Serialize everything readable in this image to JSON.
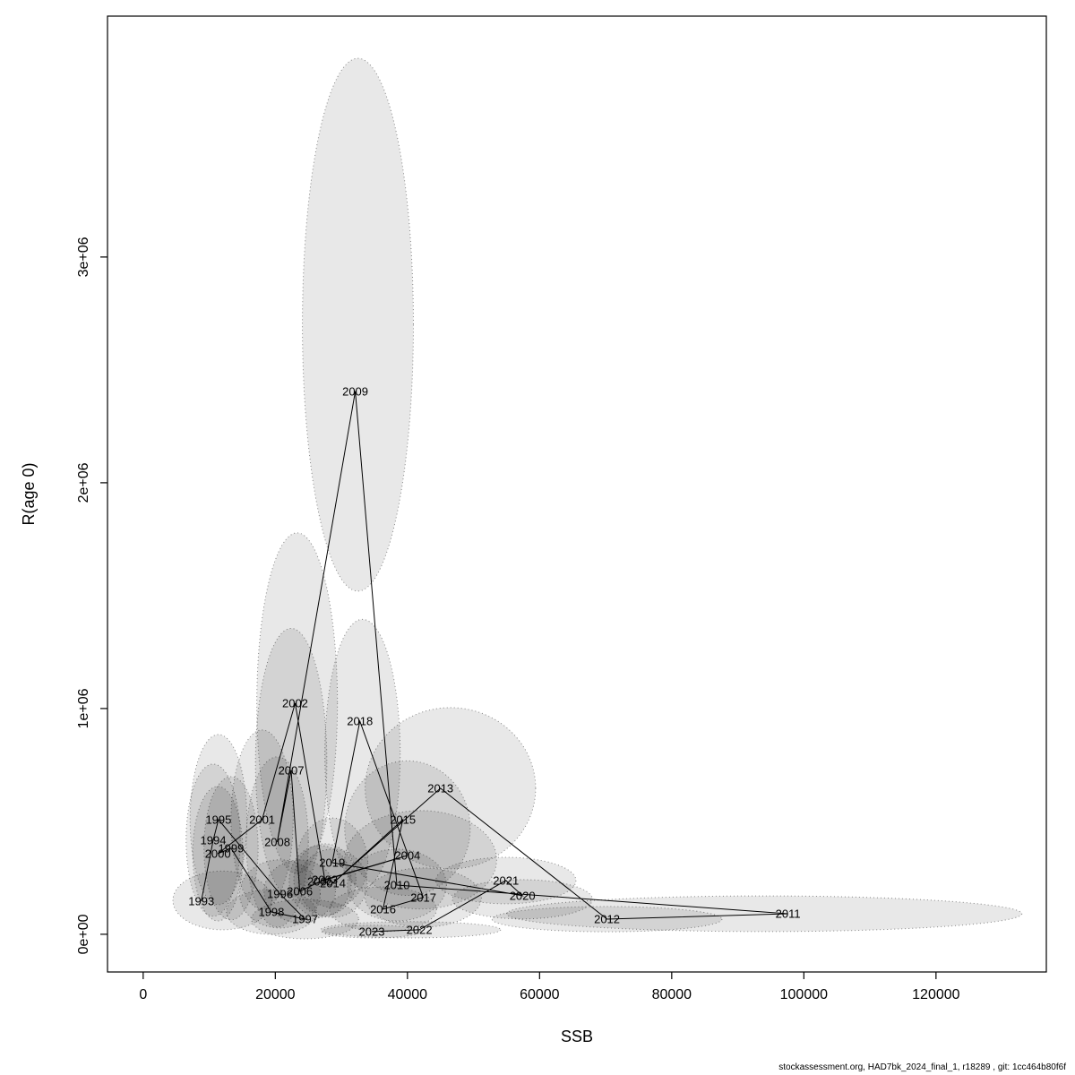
{
  "figure": {
    "background": "#FFFFFF",
    "label_color": "#FF0000",
    "line_color": "#000000",
    "ellipse_fill_alpha": 0.09,
    "ellipse_stroke": "rgba(0,0,0,0.45)"
  },
  "footer": {
    "caption": "stockassessment.org, HAD7bk_2024_final_1, r18289 , git: 1cc464b80f6f"
  },
  "chart_data": {
    "type": "scatter",
    "title": "",
    "xlabel": "SSB",
    "ylabel": "R(age 0)",
    "xlim": [
      -5400,
      136700
    ],
    "ylim": [
      -167000,
      4067000
    ],
    "grid": false,
    "legend": "none",
    "x_ticks": [
      0,
      20000,
      40000,
      60000,
      80000,
      100000,
      120000
    ],
    "x_tick_labels": [
      "0",
      "20000",
      "40000",
      "60000",
      "80000",
      "100000",
      "120000"
    ],
    "y_ticks": [
      0,
      1000000,
      2000000,
      3000000
    ],
    "y_tick_labels": [
      "0e+00",
      "1e+06",
      "2e+06",
      "3e+06"
    ],
    "connect_points_in_year_order": true,
    "points": [
      {
        "year": 1993,
        "ssb": 8800,
        "rec": 147000,
        "ell": {
          "cx": 12000,
          "cy": 150000,
          "rx": 7500,
          "ry": 130000
        }
      },
      {
        "year": 1994,
        "ssb": 10600,
        "rec": 417000,
        "ell": {
          "cx": 10600,
          "cy": 417000,
          "rx": 4100,
          "ry": 337000
        }
      },
      {
        "year": 1995,
        "ssb": 11400,
        "rec": 508000,
        "ell": {
          "cx": 11400,
          "cy": 508000,
          "rx": 4300,
          "ry": 377000
        }
      },
      {
        "year": 1996,
        "ssb": 20700,
        "rec": 179000,
        "ell": {
          "cx": 20700,
          "cy": 179000,
          "rx": 6100,
          "ry": 151000
        }
      },
      {
        "year": 1997,
        "ssb": 24500,
        "rec": 67000,
        "ell": {
          "cx": 24500,
          "cy": 67000,
          "rx": 8100,
          "ry": 87000
        }
      },
      {
        "year": 1998,
        "ssb": 19400,
        "rec": 99000,
        "ell": {
          "cx": 19400,
          "cy": 99000,
          "rx": 6800,
          "ry": 99000
        }
      },
      {
        "year": 1999,
        "ssb": 13300,
        "rec": 381000,
        "ell": {
          "cx": 13300,
          "cy": 381000,
          "rx": 4100,
          "ry": 317000
        }
      },
      {
        "year": 2000,
        "ssb": 11300,
        "rec": 357000,
        "ell": {
          "cx": 11300,
          "cy": 357000,
          "rx": 3800,
          "ry": 298000
        }
      },
      {
        "year": 2001,
        "ssb": 18000,
        "rec": 508000,
        "ell": {
          "cx": 18000,
          "cy": 508000,
          "rx": 4700,
          "ry": 397000
        }
      },
      {
        "year": 2002,
        "ssb": 23000,
        "rec": 1024000,
        "ell": {
          "cx": 23300,
          "cy": 1024000,
          "rx": 6100,
          "ry": 754000
        }
      },
      {
        "year": 2003,
        "ssb": 27500,
        "rec": 242000,
        "ell": {
          "cx": 27500,
          "cy": 242000,
          "rx": 4700,
          "ry": 159000
        }
      },
      {
        "year": 2004,
        "ssb": 40000,
        "rec": 349000,
        "ell": {
          "cx": 42000,
          "cy": 330000,
          "rx": 11500,
          "ry": 218000
        }
      },
      {
        "year": 2005,
        "ssb": 26800,
        "rec": 234000,
        "ell": {
          "cx": 26800,
          "cy": 234000,
          "rx": 4700,
          "ry": 159000
        }
      },
      {
        "year": 2006,
        "ssb": 23700,
        "rec": 190000,
        "ell": {
          "cx": 23700,
          "cy": 190000,
          "rx": 5400,
          "ry": 139000
        }
      },
      {
        "year": 2007,
        "ssb": 22400,
        "rec": 726000,
        "ell": {
          "cx": 22400,
          "cy": 760000,
          "rx": 5400,
          "ry": 595000
        }
      },
      {
        "year": 2008,
        "ssb": 20300,
        "rec": 409000,
        "ell": {
          "cx": 20300,
          "cy": 409000,
          "rx": 4700,
          "ry": 377000
        }
      },
      {
        "year": 2009,
        "ssb": 32100,
        "rec": 2405000,
        "ell": {
          "cx": 32500,
          "cy": 2700000,
          "rx": 8400,
          "ry": 1180000
        }
      },
      {
        "year": 2010,
        "ssb": 38400,
        "rec": 218000,
        "ell": {
          "cx": 38400,
          "cy": 218000,
          "rx": 7500,
          "ry": 159000
        }
      },
      {
        "year": 2011,
        "ssb": 97600,
        "rec": 91000,
        "ell": {
          "cx": 94000,
          "cy": 91000,
          "rx": 39000,
          "ry": 79000
        }
      },
      {
        "year": 2012,
        "ssb": 70200,
        "rec": 67000,
        "ell": {
          "cx": 70200,
          "cy": 67000,
          "rx": 17400,
          "ry": 56000
        }
      },
      {
        "year": 2013,
        "ssb": 45000,
        "rec": 647000,
        "ell": {
          "cx": 46500,
          "cy": 647000,
          "rx": 12900,
          "ry": 357000
        }
      },
      {
        "year": 2014,
        "ssb": 28700,
        "rec": 226000,
        "ell": {
          "cx": 28700,
          "cy": 226000,
          "rx": 5200,
          "ry": 151000
        }
      },
      {
        "year": 2015,
        "ssb": 39300,
        "rec": 508000,
        "ell": {
          "cx": 40000,
          "cy": 470000,
          "rx": 9500,
          "ry": 298000
        }
      },
      {
        "year": 2016,
        "ssb": 36300,
        "rec": 111000,
        "ell": {
          "cx": 36300,
          "cy": 111000,
          "rx": 8100,
          "ry": 99000
        }
      },
      {
        "year": 2017,
        "ssb": 42400,
        "rec": 163000,
        "ell": {
          "cx": 42400,
          "cy": 163000,
          "rx": 8800,
          "ry": 131000
        }
      },
      {
        "year": 2018,
        "ssb": 32800,
        "rec": 944000,
        "ell": {
          "cx": 33200,
          "cy": 800000,
          "rx": 5700,
          "ry": 595000
        }
      },
      {
        "year": 2019,
        "ssb": 28600,
        "rec": 317000,
        "ell": {
          "cx": 28600,
          "cy": 317000,
          "rx": 5400,
          "ry": 198000
        }
      },
      {
        "year": 2020,
        "ssb": 57400,
        "rec": 171000,
        "ell": {
          "cx": 57400,
          "cy": 155000,
          "rx": 10600,
          "ry": 87000
        }
      },
      {
        "year": 2021,
        "ssb": 54900,
        "rec": 238000,
        "ell": {
          "cx": 54900,
          "cy": 238000,
          "rx": 10600,
          "ry": 103000
        }
      },
      {
        "year": 2022,
        "ssb": 41800,
        "rec": 20000,
        "ell": {
          "cx": 40500,
          "cy": 20000,
          "rx": 13600,
          "ry": 36000
        }
      },
      {
        "year": 2023,
        "ssb": 34600,
        "rec": 12000,
        "ell": {
          "cx": 34600,
          "cy": 12000,
          "rx": 7500,
          "ry": 28000
        }
      }
    ]
  }
}
